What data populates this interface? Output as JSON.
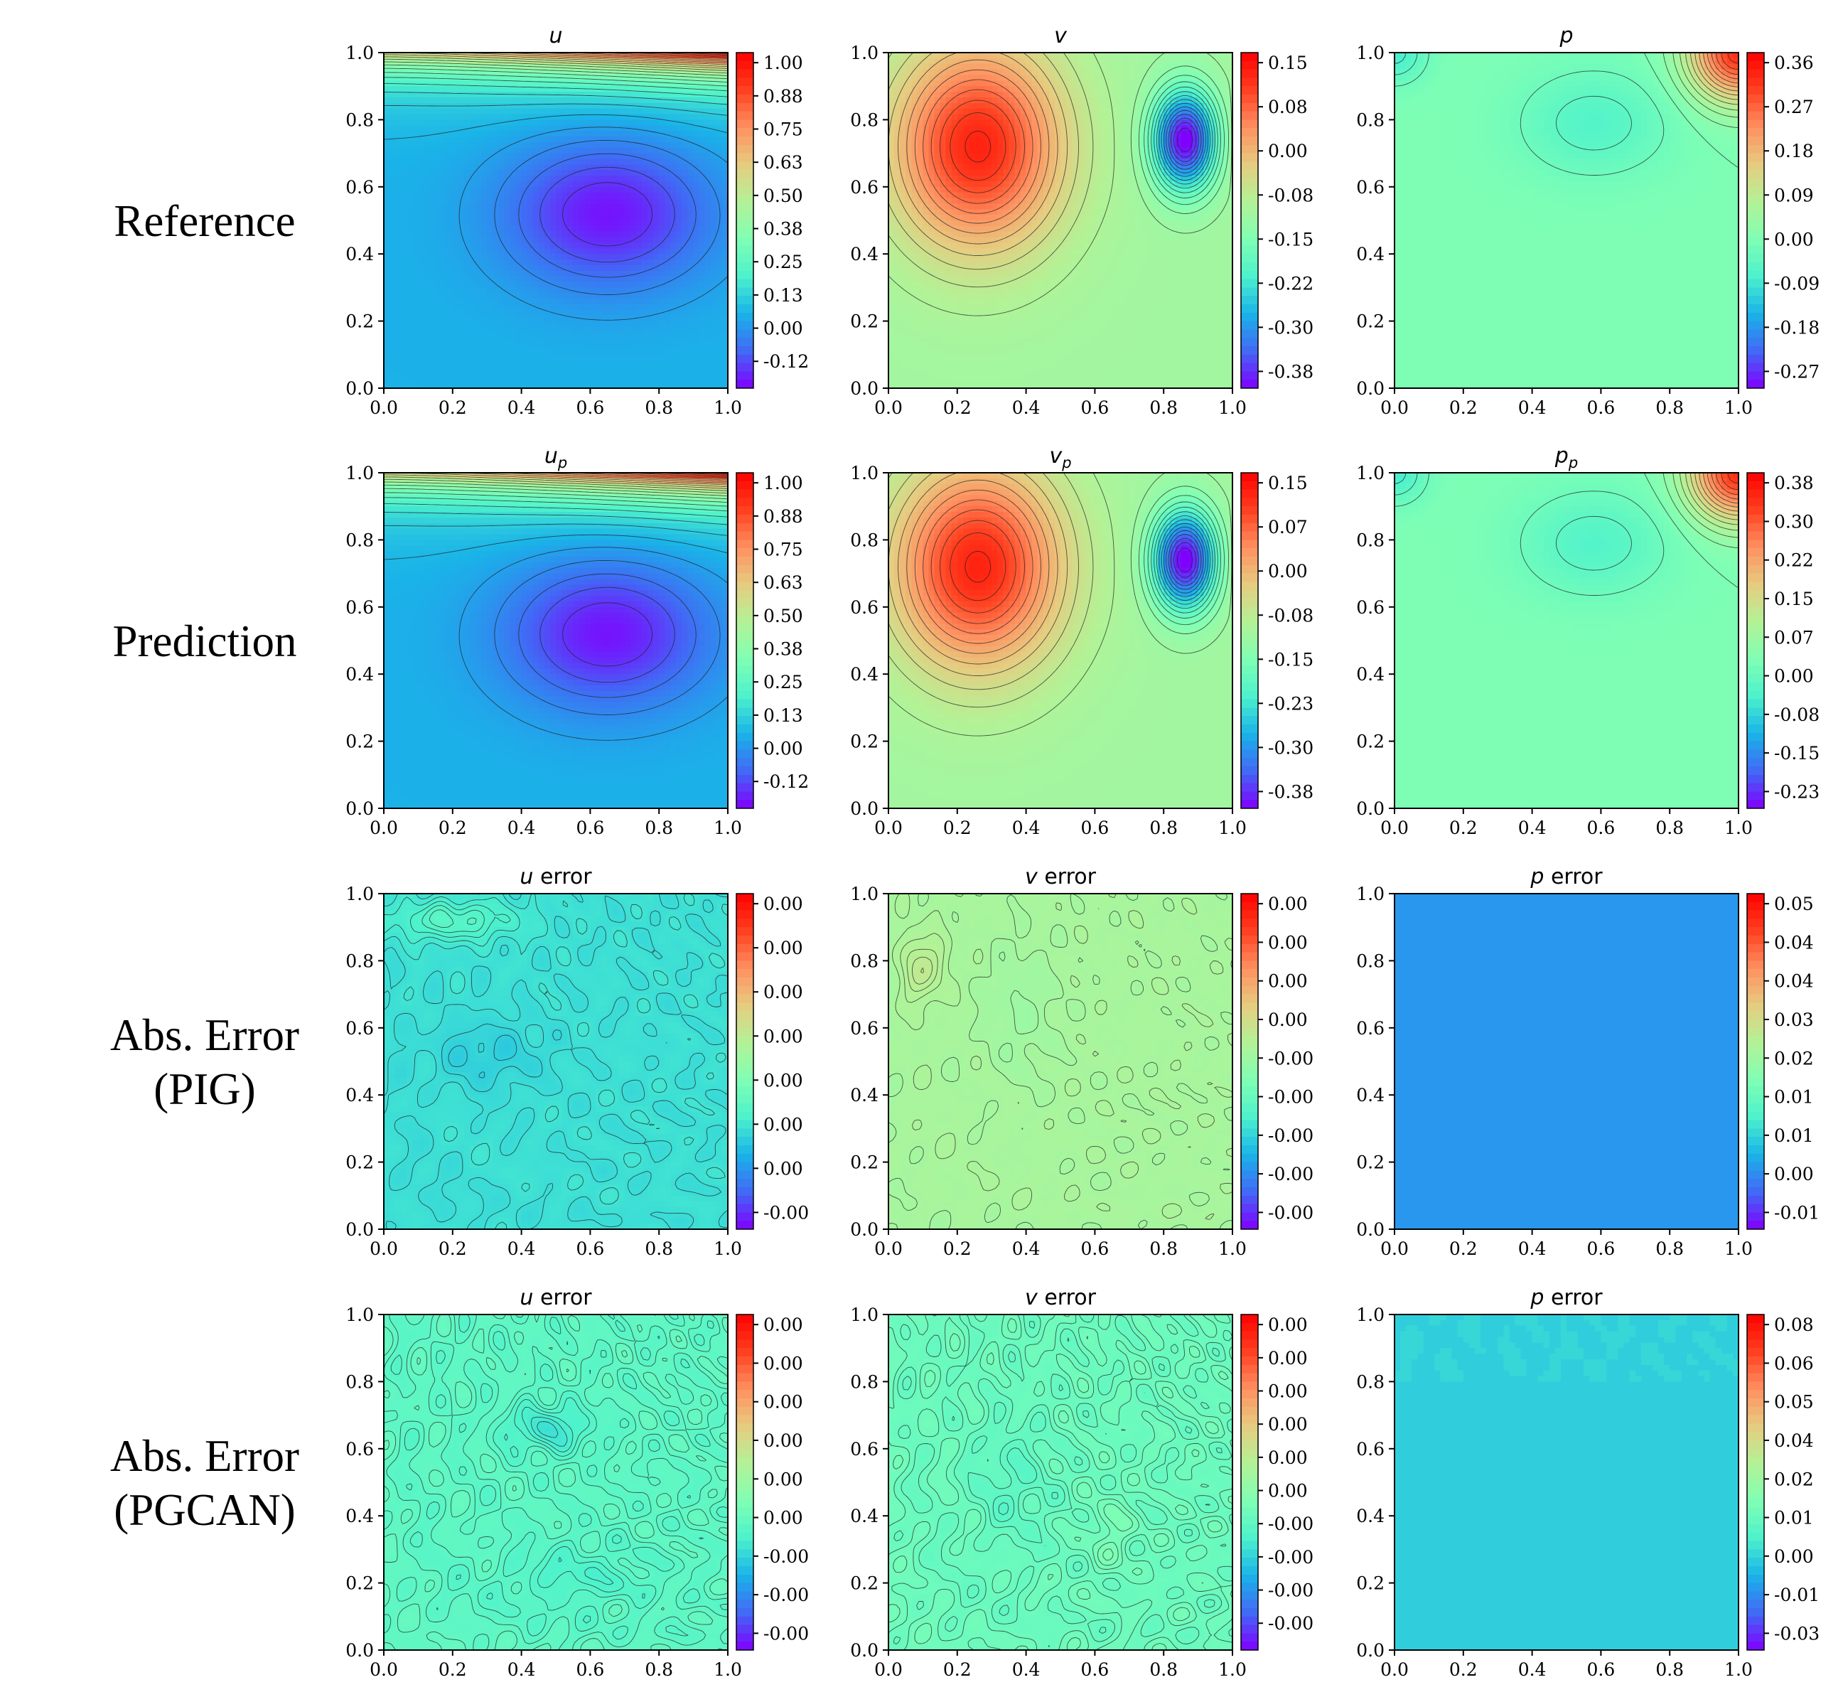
{
  "chart_data": {
    "type": "heatmap",
    "rows": [
      {
        "label_lines": [
          "Reference"
        ]
      },
      {
        "label_lines": [
          "Prediction"
        ]
      },
      {
        "label_lines": [
          "Abs. Error",
          "(PIG)"
        ]
      },
      {
        "label_lines": [
          "Abs. Error",
          "(PGCAN)"
        ]
      }
    ],
    "axis_ticks": [
      "0.0",
      "0.2",
      "0.4",
      "0.6",
      "0.8",
      "1.0"
    ],
    "xlim": [
      0,
      1
    ],
    "ylim": [
      0,
      1
    ],
    "colormap": [
      "#8000ff",
      "#4169f5",
      "#1ab3e8",
      "#4df2cc",
      "#80ffb4",
      "#b3f296",
      "#e6cc80",
      "#ff9060",
      "#ff4020",
      "#ff0000"
    ],
    "panels": [
      {
        "title_var": "u",
        "title_sub": "",
        "title_suffix": "",
        "field": "u",
        "cb_ticks": [
          "1.00",
          "0.88",
          "0.75",
          "0.63",
          "0.50",
          "0.38",
          "0.25",
          "0.13",
          "0.00",
          "-0.12"
        ]
      },
      {
        "title_var": "v",
        "title_sub": "",
        "title_suffix": "",
        "field": "v",
        "cb_ticks": [
          "0.15",
          "0.08",
          "0.00",
          "-0.08",
          "-0.15",
          "-0.22",
          "-0.30",
          "-0.38"
        ]
      },
      {
        "title_var": "p",
        "title_sub": "",
        "title_suffix": "",
        "field": "p",
        "cb_ticks": [
          "0.36",
          "0.27",
          "0.18",
          "0.09",
          "0.00",
          "-0.09",
          "-0.18",
          "-0.27"
        ]
      },
      {
        "title_var": "u",
        "title_sub": "p",
        "title_suffix": "",
        "field": "u",
        "cb_ticks": [
          "1.00",
          "0.88",
          "0.75",
          "0.63",
          "0.50",
          "0.38",
          "0.25",
          "0.13",
          "0.00",
          "-0.12"
        ]
      },
      {
        "title_var": "v",
        "title_sub": "p",
        "title_suffix": "",
        "field": "v",
        "cb_ticks": [
          "0.15",
          "0.07",
          "0.00",
          "-0.08",
          "-0.15",
          "-0.23",
          "-0.30",
          "-0.38"
        ]
      },
      {
        "title_var": "p",
        "title_sub": "p",
        "title_suffix": "",
        "field": "p",
        "cb_ticks": [
          "0.38",
          "0.30",
          "0.22",
          "0.15",
          "0.07",
          "0.00",
          "-0.08",
          "-0.15",
          "-0.23"
        ]
      },
      {
        "title_var": "u",
        "title_sub": "",
        "title_suffix": "error",
        "field": "err_u_pig",
        "cb_ticks": [
          "0.00",
          "0.00",
          "0.00",
          "0.00",
          "0.00",
          "0.00",
          "0.00",
          "-0.00"
        ]
      },
      {
        "title_var": "v",
        "title_sub": "",
        "title_suffix": "error",
        "field": "err_v_pig",
        "cb_ticks": [
          "0.00",
          "0.00",
          "0.00",
          "0.00",
          "-0.00",
          "-0.00",
          "-0.00",
          "-0.00",
          "-0.00"
        ]
      },
      {
        "title_var": "p",
        "title_sub": "",
        "title_suffix": "error",
        "field": "flat_p_pig",
        "cb_ticks": [
          "0.05",
          "0.04",
          "0.04",
          "0.03",
          "0.02",
          "0.01",
          "0.01",
          "0.00",
          "-0.01"
        ]
      },
      {
        "title_var": "u",
        "title_sub": "",
        "title_suffix": "error",
        "field": "err_u_pgcan",
        "cb_ticks": [
          "0.00",
          "0.00",
          "0.00",
          "0.00",
          "0.00",
          "0.00",
          "-0.00",
          "-0.00",
          "-0.00"
        ]
      },
      {
        "title_var": "v",
        "title_sub": "",
        "title_suffix": "error",
        "field": "err_v_pgcan",
        "cb_ticks": [
          "0.00",
          "0.00",
          "0.00",
          "0.00",
          "0.00",
          "0.00",
          "-0.00",
          "-0.00",
          "-0.00",
          "-0.00"
        ]
      },
      {
        "title_var": "p",
        "title_sub": "",
        "title_suffix": "error",
        "field": "flat_p_pgcan",
        "cb_ticks": [
          "0.08",
          "0.06",
          "0.05",
          "0.04",
          "0.02",
          "0.01",
          "0.00",
          "-0.01",
          "-0.03"
        ]
      }
    ]
  }
}
